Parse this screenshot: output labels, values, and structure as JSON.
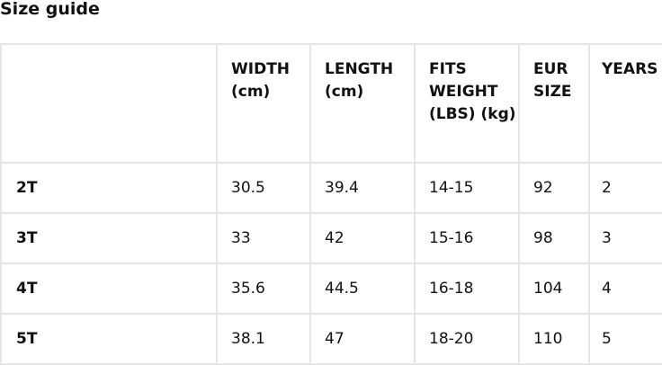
{
  "title": "Size guide",
  "table": {
    "headers": [
      "",
      "WIDTH (cm)",
      "LENGTH (cm)",
      "FITS WEIGHT (LBS) (kg)",
      "EUR SIZE",
      "YEARS"
    ],
    "rows": [
      [
        "2T",
        "30.5",
        "39.4",
        "14-15",
        "92",
        "2"
      ],
      [
        "3T",
        "33",
        "42",
        "15-16",
        "98",
        "3"
      ],
      [
        "4T",
        "35.6",
        "44.5",
        "16-18",
        "104",
        "4"
      ],
      [
        "5T",
        "38.1",
        "47",
        "18-20",
        "110",
        "5"
      ]
    ]
  }
}
